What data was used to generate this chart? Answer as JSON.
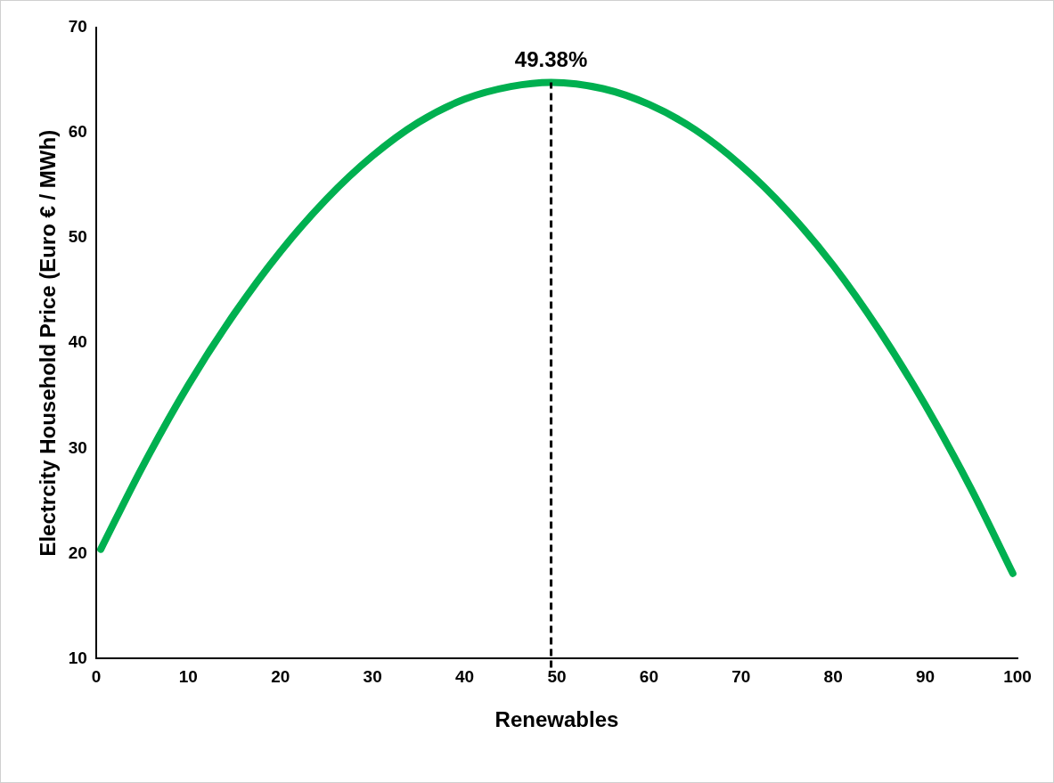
{
  "chart_data": {
    "type": "line",
    "xlabel": "Renewables",
    "ylabel": "Electrcity Household Price (Euro € / MWh)",
    "x": [
      0.5,
      5,
      10,
      15,
      20,
      25,
      30,
      35,
      40,
      45,
      49.38,
      55,
      60,
      65,
      70,
      75,
      80,
      85,
      90,
      95,
      99.5
    ],
    "series": [
      {
        "color": "#00b050",
        "values": [
          20.4,
          28.2,
          36.0,
          42.8,
          48.7,
          53.7,
          57.8,
          61.0,
          63.2,
          64.4,
          64.8,
          64.2,
          62.7,
          60.3,
          56.9,
          52.6,
          47.4,
          41.2,
          34.1,
          26.1,
          18.1
        ]
      }
    ],
    "xlim": [
      0,
      100
    ],
    "xticks": [
      0,
      10,
      20,
      30,
      40,
      50,
      60,
      70,
      80,
      90,
      100
    ],
    "ylim": [
      10,
      70
    ],
    "yticks": [
      10,
      20,
      30,
      40,
      50,
      60,
      70
    ],
    "ref_lines": [
      {
        "axis": "x",
        "value": 49.38,
        "label": "49.38%",
        "color": "#000000",
        "line_style": "dashed"
      }
    ],
    "grid": false,
    "legend": false,
    "marker": "none",
    "line_style": "solid"
  }
}
